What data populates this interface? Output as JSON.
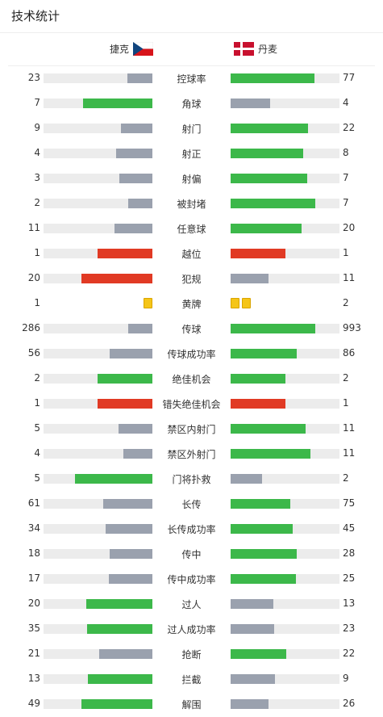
{
  "header": {
    "title": "技术统计"
  },
  "teams": {
    "home": "捷克",
    "away": "丹麦"
  },
  "colors": {
    "win": "#3cb84a",
    "lose": "#9aa1ae",
    "red": "#e13a24",
    "track": "#ececec",
    "card": "#f5c518"
  },
  "stats": [
    {
      "label": "控球率",
      "home": "23",
      "away": "77",
      "hf": 0.23,
      "af": 0.77,
      "hc": "lose",
      "ac": "win"
    },
    {
      "label": "角球",
      "home": "7",
      "away": "4",
      "hf": 0.64,
      "af": 0.36,
      "hc": "win",
      "ac": "lose"
    },
    {
      "label": "射门",
      "home": "9",
      "away": "22",
      "hf": 0.29,
      "af": 0.71,
      "hc": "lose",
      "ac": "win"
    },
    {
      "label": "射正",
      "home": "4",
      "away": "8",
      "hf": 0.33,
      "af": 0.67,
      "hc": "lose",
      "ac": "win"
    },
    {
      "label": "射偏",
      "home": "3",
      "away": "7",
      "hf": 0.3,
      "af": 0.7,
      "hc": "lose",
      "ac": "win"
    },
    {
      "label": "被封堵",
      "home": "2",
      "away": "7",
      "hf": 0.22,
      "af": 0.78,
      "hc": "lose",
      "ac": "win"
    },
    {
      "label": "任意球",
      "home": "11",
      "away": "20",
      "hf": 0.35,
      "af": 0.65,
      "hc": "lose",
      "ac": "win"
    },
    {
      "label": "越位",
      "home": "1",
      "away": "1",
      "hf": 0.5,
      "af": 0.5,
      "hc": "red",
      "ac": "red"
    },
    {
      "label": "犯规",
      "home": "20",
      "away": "11",
      "hf": 0.65,
      "af": 0.35,
      "hc": "red",
      "ac": "lose"
    },
    {
      "label": "黄牌",
      "home": "1",
      "away": "2",
      "cards": true,
      "hcards": 1,
      "acards": 2
    },
    {
      "label": "传球",
      "home": "286",
      "away": "993",
      "hf": 0.22,
      "af": 0.78,
      "hc": "lose",
      "ac": "win"
    },
    {
      "label": "传球成功率",
      "home": "56",
      "away": "86",
      "hf": 0.39,
      "af": 0.61,
      "hc": "lose",
      "ac": "win"
    },
    {
      "label": "绝佳机会",
      "home": "2",
      "away": "2",
      "hf": 0.5,
      "af": 0.5,
      "hc": "win",
      "ac": "win"
    },
    {
      "label": "错失绝佳机会",
      "home": "1",
      "away": "1",
      "hf": 0.5,
      "af": 0.5,
      "hc": "red",
      "ac": "red"
    },
    {
      "label": "禁区内射门",
      "home": "5",
      "away": "11",
      "hf": 0.31,
      "af": 0.69,
      "hc": "lose",
      "ac": "win"
    },
    {
      "label": "禁区外射门",
      "home": "4",
      "away": "11",
      "hf": 0.27,
      "af": 0.73,
      "hc": "lose",
      "ac": "win"
    },
    {
      "label": "门将扑救",
      "home": "5",
      "away": "2",
      "hf": 0.71,
      "af": 0.29,
      "hc": "win",
      "ac": "lose"
    },
    {
      "label": "长传",
      "home": "61",
      "away": "75",
      "hf": 0.45,
      "af": 0.55,
      "hc": "lose",
      "ac": "win"
    },
    {
      "label": "长传成功率",
      "home": "34",
      "away": "45",
      "hf": 0.43,
      "af": 0.57,
      "hc": "lose",
      "ac": "win"
    },
    {
      "label": "传中",
      "home": "18",
      "away": "28",
      "hf": 0.39,
      "af": 0.61,
      "hc": "lose",
      "ac": "win"
    },
    {
      "label": "传中成功率",
      "home": "17",
      "away": "25",
      "hf": 0.4,
      "af": 0.6,
      "hc": "lose",
      "ac": "win"
    },
    {
      "label": "过人",
      "home": "20",
      "away": "13",
      "hf": 0.61,
      "af": 0.39,
      "hc": "win",
      "ac": "lose"
    },
    {
      "label": "过人成功率",
      "home": "35",
      "away": "23",
      "hf": 0.6,
      "af": 0.4,
      "hc": "win",
      "ac": "lose"
    },
    {
      "label": "抢断",
      "home": "21",
      "away": "22",
      "hf": 0.49,
      "af": 0.51,
      "hc": "lose",
      "ac": "win"
    },
    {
      "label": "拦截",
      "home": "13",
      "away": "9",
      "hf": 0.59,
      "af": 0.41,
      "hc": "win",
      "ac": "lose"
    },
    {
      "label": "解围",
      "home": "49",
      "away": "26",
      "hf": 0.65,
      "af": 0.35,
      "hc": "win",
      "ac": "lose"
    }
  ]
}
